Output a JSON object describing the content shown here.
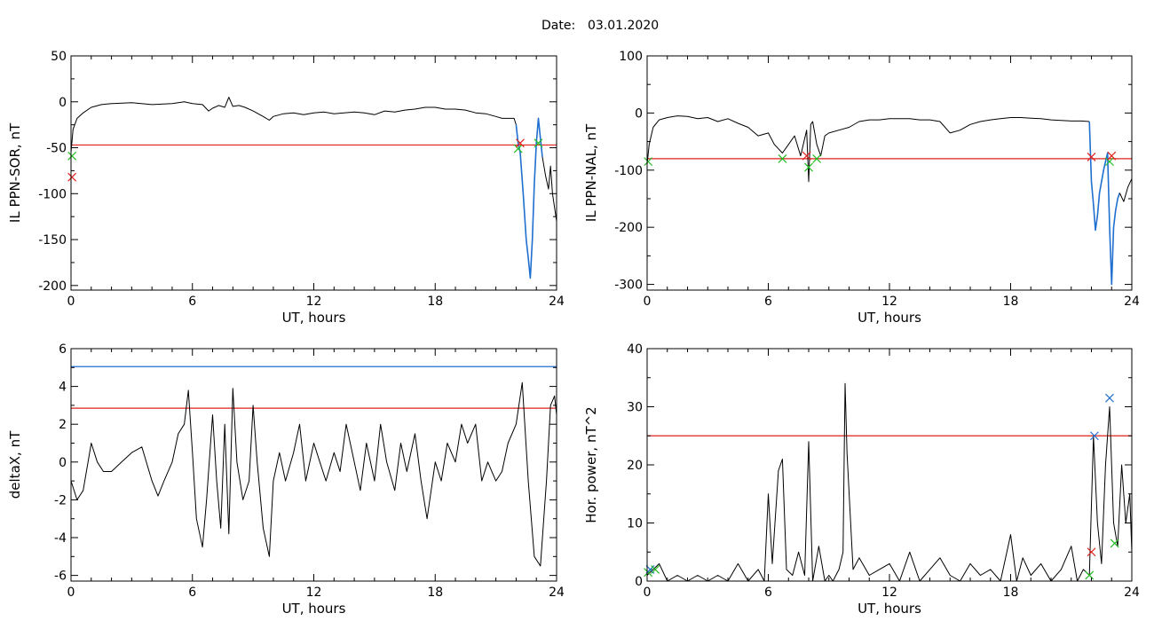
{
  "header": {
    "date_label": "Date:",
    "date_value": "03.01.2020"
  },
  "colors": {
    "trace": "#000000",
    "threshold_red": "#e0201c",
    "threshold_blue": "#1f6fd0",
    "marker_green": "#22bb22",
    "marker_red": "#e0201c",
    "marker_blue": "#1f6fd0"
  },
  "chart_data": [
    {
      "type": "line",
      "xlabel": "UT, hours",
      "ylabel": "IL PPN-SOR, nT",
      "xlim": [
        0,
        24
      ],
      "ylim": [
        -205,
        50
      ],
      "xticks": [
        0,
        6,
        12,
        18,
        24
      ],
      "yticks": [
        50,
        0,
        -50,
        -100,
        -150,
        -200
      ],
      "grid": false,
      "thresholds": [
        {
          "y": -47,
          "color": "red"
        }
      ],
      "series": [
        {
          "color": "black",
          "x": [
            0,
            0.1,
            0.3,
            0.6,
            1,
            1.5,
            2,
            3,
            4,
            5,
            5.6,
            6,
            6.5,
            6.8,
            7,
            7.3,
            7.6,
            7.8,
            8,
            8.3,
            8.6,
            9,
            9.5,
            9.8,
            10,
            10.5,
            11,
            11.5,
            12,
            12.5,
            13,
            13.5,
            14,
            14.5,
            15,
            15.5,
            16,
            16.5,
            17,
            17.5,
            18,
            18.5,
            19,
            19.5,
            20,
            20.5,
            21,
            21.3,
            21.6,
            21.9,
            22
          ],
          "y": [
            -55,
            -30,
            -18,
            -12,
            -6,
            -3,
            -2,
            -1,
            -3,
            -2,
            0,
            -2,
            -3,
            -10,
            -7,
            -4,
            -6,
            5,
            -5,
            -4,
            -6,
            -10,
            -16,
            -20,
            -16,
            -13,
            -12,
            -14,
            -12,
            -11,
            -13,
            -12,
            -11,
            -12,
            -14,
            -10,
            -11,
            -9,
            -8,
            -6,
            -6,
            -8,
            -8,
            -9,
            -12,
            -13,
            -16,
            -18,
            -18,
            -18,
            -25
          ]
        },
        {
          "color": "blue",
          "x": [
            22,
            22.1,
            22.2,
            22.35,
            22.5,
            22.6,
            22.7,
            22.8,
            22.9,
            23,
            23.1,
            23.2,
            23.3
          ],
          "y": [
            -25,
            -45,
            -55,
            -100,
            -150,
            -170,
            -192,
            -150,
            -90,
            -45,
            -18,
            -40,
            -60
          ]
        },
        {
          "color": "black",
          "x": [
            23.3,
            23.45,
            23.6,
            23.7,
            23.8,
            23.9,
            24
          ],
          "y": [
            -60,
            -80,
            -95,
            -70,
            -100,
            -115,
            -130
          ]
        }
      ],
      "markers": [
        {
          "x": 0.05,
          "y": -59,
          "color": "green"
        },
        {
          "x": 0.05,
          "y": -82,
          "color": "red"
        },
        {
          "x": 22.1,
          "y": -51,
          "color": "green"
        },
        {
          "x": 22.2,
          "y": -45,
          "color": "red"
        },
        {
          "x": 23.1,
          "y": -45,
          "color": "green"
        }
      ]
    },
    {
      "type": "line",
      "xlabel": "UT, hours",
      "ylabel": "IL PPN-NAL, nT",
      "xlim": [
        0,
        24
      ],
      "ylim": [
        -310,
        100
      ],
      "xticks": [
        0,
        6,
        12,
        18,
        24
      ],
      "yticks": [
        100,
        0,
        -100,
        -200,
        -300
      ],
      "grid": false,
      "thresholds": [
        {
          "y": -80,
          "color": "red"
        }
      ],
      "series": [
        {
          "color": "black",
          "x": [
            0,
            0.1,
            0.3,
            0.6,
            1,
            1.5,
            2,
            2.5,
            3,
            3.5,
            4,
            4.5,
            5,
            5.5,
            6,
            6.3,
            6.7,
            7,
            7.3,
            7.6,
            7.9,
            8,
            8.1,
            8.2,
            8.4,
            8.6,
            8.8,
            9,
            9.5,
            10,
            10.5,
            11,
            11.5,
            12,
            12.5,
            13,
            13.5,
            14,
            14.5,
            15,
            15.5,
            16,
            16.5,
            17,
            17.5,
            18,
            18.5,
            19,
            19.5,
            20,
            20.5,
            21,
            21.5,
            21.9
          ],
          "y": [
            -90,
            -55,
            -25,
            -12,
            -8,
            -5,
            -6,
            -10,
            -8,
            -15,
            -10,
            -18,
            -25,
            -40,
            -35,
            -55,
            -70,
            -55,
            -40,
            -75,
            -30,
            -120,
            -20,
            -15,
            -55,
            -75,
            -40,
            -35,
            -30,
            -25,
            -15,
            -12,
            -12,
            -10,
            -10,
            -10,
            -12,
            -12,
            -15,
            -35,
            -30,
            -20,
            -15,
            -12,
            -10,
            -8,
            -8,
            -9,
            -10,
            -12,
            -13,
            -14,
            -14,
            -15
          ]
        },
        {
          "color": "blue",
          "x": [
            21.9,
            22,
            22.1,
            22.2,
            22.3,
            22.4,
            22.5,
            22.6,
            22.7,
            22.8,
            22.9,
            23,
            23.1,
            23.2,
            23.3,
            23.4
          ],
          "y": [
            -15,
            -120,
            -160,
            -205,
            -180,
            -140,
            -120,
            -100,
            -85,
            -70,
            -200,
            -300,
            -200,
            -170,
            -150,
            -140
          ]
        },
        {
          "color": "black",
          "x": [
            23.4,
            23.6,
            23.8,
            24
          ],
          "y": [
            -140,
            -155,
            -130,
            -115
          ]
        }
      ],
      "markers": [
        {
          "x": 0.05,
          "y": -85,
          "color": "green"
        },
        {
          "x": 6.7,
          "y": -80,
          "color": "green"
        },
        {
          "x": 7.9,
          "y": -75,
          "color": "red"
        },
        {
          "x": 8.0,
          "y": -95,
          "color": "green"
        },
        {
          "x": 8.4,
          "y": -80,
          "color": "green"
        },
        {
          "x": 22.0,
          "y": -77,
          "color": "red"
        },
        {
          "x": 22.9,
          "y": -85,
          "color": "green"
        },
        {
          "x": 23.0,
          "y": -75,
          "color": "red"
        }
      ]
    },
    {
      "type": "line",
      "xlabel": "UT, hours",
      "ylabel": "deltaX, nT",
      "xlim": [
        0,
        24
      ],
      "ylim": [
        -6.3,
        6
      ],
      "xticks": [
        0,
        6,
        12,
        18,
        24
      ],
      "yticks": [
        6,
        4,
        2,
        0,
        -2,
        -4,
        -6
      ],
      "grid": false,
      "thresholds": [
        {
          "y": 5.05,
          "color": "blue"
        },
        {
          "y": 2.85,
          "color": "red"
        }
      ],
      "series": [
        {
          "color": "black",
          "x": [
            0,
            0.3,
            0.6,
            1,
            1.3,
            1.6,
            2,
            2.5,
            3,
            3.5,
            4,
            4.3,
            4.6,
            5,
            5.3,
            5.6,
            5.8,
            6,
            6.2,
            6.5,
            6.7,
            7,
            7.2,
            7.4,
            7.6,
            7.8,
            8,
            8.2,
            8.5,
            8.8,
            9,
            9.2,
            9.5,
            9.8,
            10,
            10.3,
            10.6,
            11,
            11.3,
            11.6,
            12,
            12.3,
            12.6,
            13,
            13.3,
            13.6,
            14,
            14.3,
            14.6,
            15,
            15.3,
            15.6,
            16,
            16.3,
            16.6,
            17,
            17.3,
            17.6,
            18,
            18.3,
            18.6,
            19,
            19.3,
            19.6,
            20,
            20.3,
            20.6,
            21,
            21.3,
            21.6,
            22,
            22.3,
            22.6,
            22.9,
            23.2,
            23.5,
            23.7,
            23.9,
            24
          ],
          "y": [
            -1,
            -2,
            -1.5,
            1,
            0,
            -0.5,
            -0.5,
            0,
            0.5,
            0.8,
            -1,
            -1.8,
            -1,
            0,
            1.5,
            2,
            3.8,
            0.5,
            -3,
            -4.5,
            -2,
            2.5,
            -1,
            -3.5,
            2,
            -3.8,
            3.9,
            0,
            -2,
            -1,
            3,
            0,
            -3.5,
            -5,
            -1,
            0.5,
            -1,
            0.5,
            2,
            -1,
            1,
            0,
            -1,
            0.5,
            -0.5,
            2,
            0,
            -1.5,
            1,
            -1,
            2,
            0,
            -1.5,
            1,
            -0.5,
            1.5,
            -1,
            -3,
            0,
            -1,
            1,
            0,
            2,
            1,
            2,
            -1,
            0,
            -1,
            -0.5,
            1,
            2,
            4.2,
            -1,
            -5,
            -5.5,
            -1,
            3,
            3.5,
            2.5
          ]
        }
      ],
      "markers": []
    },
    {
      "type": "line",
      "xlabel": "UT, hours",
      "ylabel": "Hor. power, nT^2",
      "xlim": [
        0,
        24
      ],
      "ylim": [
        0,
        40
      ],
      "xticks": [
        0,
        6,
        12,
        18,
        24
      ],
      "yticks": [
        40,
        30,
        20,
        10,
        0
      ],
      "grid": false,
      "thresholds": [
        {
          "y": 25,
          "color": "red"
        }
      ],
      "series": [
        {
          "color": "black",
          "x": [
            0,
            0.3,
            0.6,
            1,
            1.5,
            2,
            2.5,
            3,
            3.5,
            4,
            4.5,
            5,
            5.5,
            5.8,
            6,
            6.2,
            6.5,
            6.7,
            6.9,
            7.2,
            7.5,
            7.8,
            8,
            8.2,
            8.5,
            8.8,
            9,
            9.2,
            9.5,
            9.7,
            9.8,
            9.9,
            10.2,
            10.5,
            11,
            11.5,
            12,
            12.5,
            13,
            13.5,
            14,
            14.5,
            15,
            15.5,
            16,
            16.5,
            17,
            17.5,
            18,
            18.3,
            18.6,
            19,
            19.5,
            20,
            20.5,
            21,
            21.3,
            21.6,
            21.9,
            22.1,
            22.3,
            22.5,
            22.7,
            22.9,
            23.1,
            23.3,
            23.5,
            23.7,
            23.9,
            24
          ],
          "y": [
            1,
            2,
            3,
            0,
            1,
            0,
            1,
            0,
            1,
            0,
            3,
            0,
            2,
            0,
            15,
            3,
            19,
            21,
            2,
            1,
            5,
            1,
            24,
            0,
            6,
            0,
            1,
            0,
            2,
            5,
            34,
            22,
            2,
            4,
            1,
            2,
            3,
            0,
            5,
            0,
            2,
            4,
            1,
            0,
            3,
            1,
            2,
            0,
            8,
            0,
            4,
            1,
            3,
            0,
            2,
            6,
            0,
            2,
            1,
            25,
            10,
            3,
            20,
            30,
            10,
            6,
            20,
            10,
            15,
            5
          ]
        }
      ],
      "markers": [
        {
          "x": 0.05,
          "y": 1.5,
          "color": "green"
        },
        {
          "x": 0.15,
          "y": 2,
          "color": "blue"
        },
        {
          "x": 0.4,
          "y": 2,
          "color": "green"
        },
        {
          "x": 21.9,
          "y": 1,
          "color": "green"
        },
        {
          "x": 22.0,
          "y": 5,
          "color": "red"
        },
        {
          "x": 22.15,
          "y": 25,
          "color": "blue"
        },
        {
          "x": 22.9,
          "y": 31.5,
          "color": "blue"
        },
        {
          "x": 23.15,
          "y": 6.5,
          "color": "green"
        }
      ]
    }
  ]
}
